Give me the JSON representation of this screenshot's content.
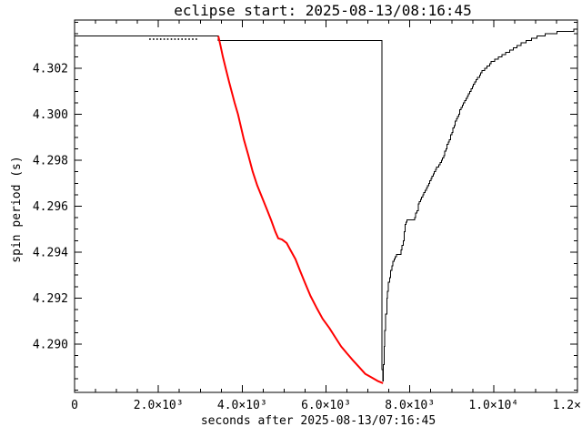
{
  "window": {
    "background": "#ffffff"
  },
  "chart_data": {
    "type": "line",
    "title": "eclipse start: 2025-08-13/08:16:45",
    "xlabel": "seconds after 2025-08-13/07:16:45",
    "ylabel": "spin period (s)",
    "xlim": [
      0,
      12000
    ],
    "ylim": [
      4.2879,
      4.3041
    ],
    "grid": false,
    "legend": null,
    "axis_color": "#000000",
    "x_ticks": {
      "major": [
        0,
        2000,
        4000,
        6000,
        8000,
        10000,
        12000
      ],
      "labels": [
        "0",
        "2.0×10³",
        "4.0×10³",
        "6.0×10³",
        "8.0×10³",
        "1.0×10⁴",
        "1.2×10⁴"
      ],
      "minor_step": 500
    },
    "y_ticks": {
      "major": [
        4.29,
        4.292,
        4.294,
        4.296,
        4.298,
        4.3,
        4.302
      ],
      "labels": [
        "4.290",
        "4.292",
        "4.294",
        "4.296",
        "4.298",
        "4.300",
        "4.302"
      ],
      "minor_step": 0.0005
    },
    "series": [
      {
        "name": "black-curve-measured-spin-period",
        "color": "#000000",
        "width": 1,
        "quantize": 0.0001,
        "points": [
          [
            0,
            4.3034
          ],
          [
            3430,
            4.3034
          ],
          [
            3430,
            4.3032
          ],
          [
            7334,
            4.3032
          ],
          [
            7334,
            4.2889
          ],
          [
            7360,
            4.28835
          ],
          [
            7372,
            4.2891
          ],
          [
            7385,
            4.2899
          ],
          [
            7400,
            4.2906
          ],
          [
            7420,
            4.2913
          ],
          [
            7450,
            4.292
          ],
          [
            7490,
            4.29265
          ],
          [
            7540,
            4.2932
          ],
          [
            7600,
            4.2936
          ],
          [
            7680,
            4.29385
          ],
          [
            7770,
            4.29395
          ],
          [
            7840,
            4.2945
          ],
          [
            7890,
            4.2952
          ],
          [
            7930,
            4.29535
          ],
          [
            8100,
            4.2954
          ],
          [
            8140,
            4.29565
          ],
          [
            8200,
            4.29605
          ],
          [
            8310,
            4.2965
          ],
          [
            8420,
            4.2969
          ],
          [
            8530,
            4.2973
          ],
          [
            8640,
            4.29765
          ],
          [
            8780,
            4.2981
          ],
          [
            8890,
            4.29865
          ],
          [
            9000,
            4.29925
          ],
          [
            9110,
            4.2998
          ],
          [
            9250,
            4.3004
          ],
          [
            9400,
            4.3009
          ],
          [
            9580,
            4.3015
          ],
          [
            9750,
            4.30195
          ],
          [
            10000,
            4.30235
          ],
          [
            10230,
            4.3026
          ],
          [
            10500,
            4.3029
          ],
          [
            10810,
            4.3032
          ],
          [
            11100,
            4.3034
          ],
          [
            11390,
            4.30352
          ],
          [
            11700,
            4.3036
          ],
          [
            12000,
            4.30368
          ]
        ]
      },
      {
        "name": "red-curve-eclipse-spin-down",
        "color": "#ff0000",
        "width": 2,
        "quantize": 0,
        "points": [
          [
            3430,
            4.3034
          ],
          [
            3480,
            4.303
          ],
          [
            3540,
            4.3025
          ],
          [
            3620,
            4.3019
          ],
          [
            3690,
            4.3014
          ],
          [
            3820,
            4.3005
          ],
          [
            3900,
            4.3
          ],
          [
            4040,
            4.2989
          ],
          [
            4150,
            4.2982
          ],
          [
            4250,
            4.2975
          ],
          [
            4360,
            4.2969
          ],
          [
            4470,
            4.2964
          ],
          [
            4580,
            4.2959
          ],
          [
            4690,
            4.2954
          ],
          [
            4790,
            4.2949
          ],
          [
            4860,
            4.2946
          ],
          [
            4950,
            4.29455
          ],
          [
            5060,
            4.2944
          ],
          [
            5150,
            4.2941
          ],
          [
            5270,
            4.2937
          ],
          [
            5380,
            4.2932
          ],
          [
            5490,
            4.2927
          ],
          [
            5630,
            4.2921
          ],
          [
            5770,
            4.2916
          ],
          [
            5920,
            4.2911
          ],
          [
            6080,
            4.2907
          ],
          [
            6220,
            4.2903
          ],
          [
            6360,
            4.2899
          ],
          [
            6500,
            4.2896
          ],
          [
            6640,
            4.2893
          ],
          [
            6790,
            4.289
          ],
          [
            6940,
            4.2887
          ],
          [
            7090,
            4.28855
          ],
          [
            7230,
            4.2884
          ],
          [
            7360,
            4.2883
          ]
        ]
      }
    ],
    "point_markers": {
      "name": "pre-eclipse-measurement-dots",
      "color": "#000000",
      "period": 4.30327,
      "t": [
        1800,
        1885,
        1970,
        2055,
        2140,
        2225,
        2310,
        2395,
        2480,
        2565,
        2650,
        2735,
        2820,
        2905
      ]
    }
  }
}
